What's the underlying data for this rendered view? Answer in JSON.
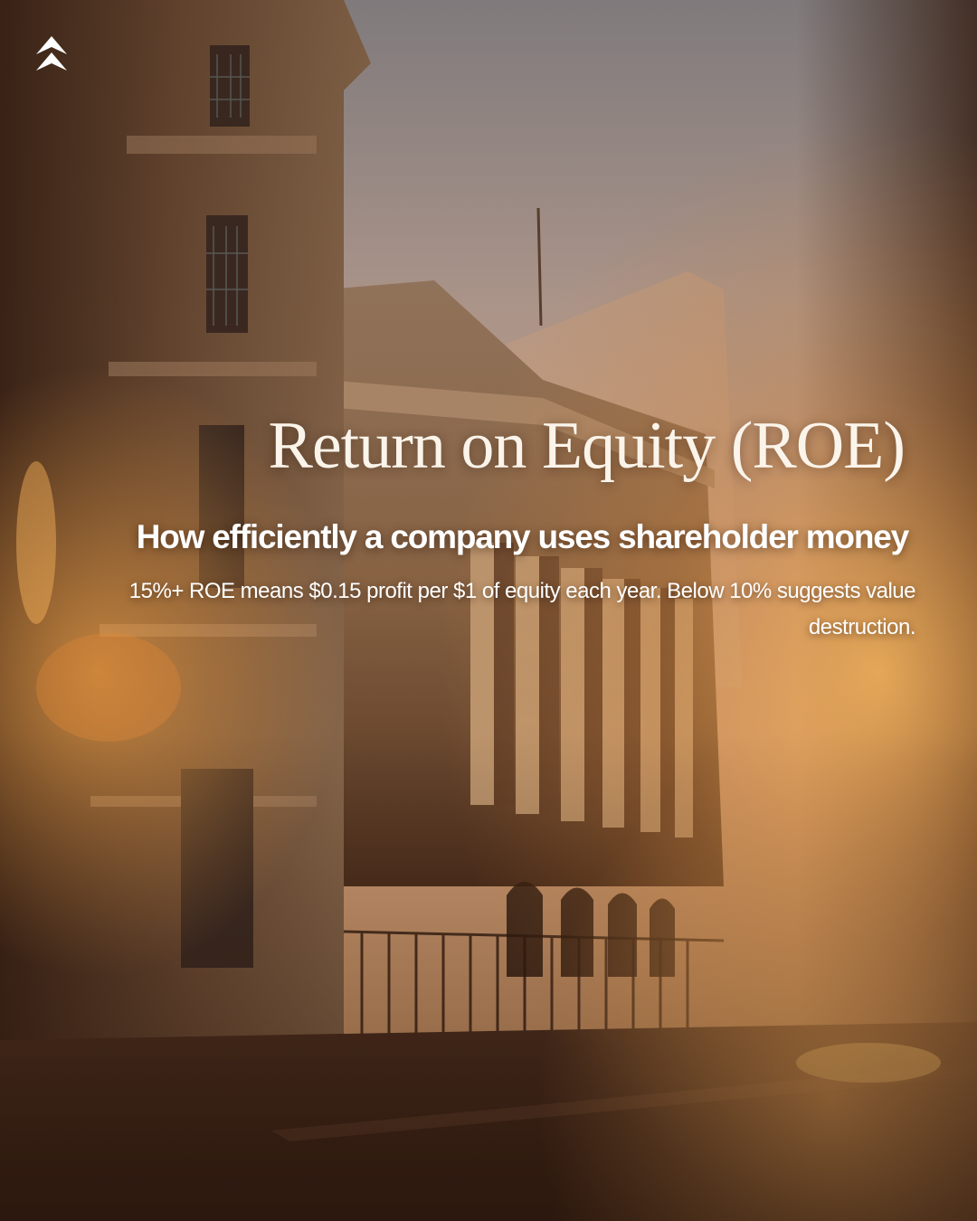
{
  "post": {
    "title": "Return on Equity (ROE)",
    "subtitle": "How efficiently a company uses shareholder money",
    "body": "15%+ ROE means $0.15 profit per $1 of equity each year. Below 10% suggests value destruction."
  },
  "brand": {
    "logo_icon": "double-chevron-up-icon",
    "logo_color": "#ffffff"
  },
  "background": {
    "description_icon": "city-street-building-photo",
    "palette": {
      "sky": "#b39a8e",
      "stone": "#8a6648",
      "shadow": "#3a2418",
      "glow": "#f0a23c"
    }
  }
}
